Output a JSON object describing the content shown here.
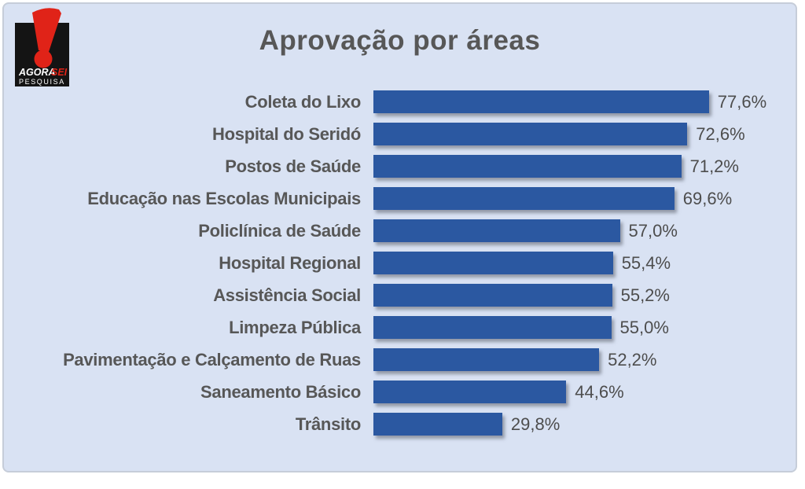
{
  "logo": {
    "brand_top": "AGORA",
    "brand_top_accent": "SEI",
    "brand_bottom": "PESQUISA",
    "colors": {
      "bg": "#141414",
      "accent": "#e02318",
      "text": "#ffffff"
    }
  },
  "header": {
    "title": "Aprovação por áreas"
  },
  "chart_data": {
    "type": "bar",
    "orientation": "horizontal",
    "title": "Aprovação por áreas",
    "categories": [
      "Coleta do Lixo",
      "Hospital do Seridó",
      "Postos de Saúde",
      "Educação nas Escolas Municipais",
      "Policlínica de Saúde",
      "Hospital Regional",
      "Assistência Social",
      "Limpeza Pública",
      "Pavimentação e Calçamento de Ruas",
      "Saneamento Básico",
      "Trânsito"
    ],
    "values": [
      77.6,
      72.6,
      71.2,
      69.6,
      57.0,
      55.4,
      55.2,
      55.0,
      52.2,
      44.6,
      29.8
    ],
    "value_labels": [
      "77,6%",
      "72,6%",
      "71,2%",
      "69,6%",
      "57,0%",
      "55,4%",
      "55,2%",
      "55,0%",
      "52,2%",
      "44,6%",
      "29,8%"
    ],
    "xlabel": "",
    "ylabel": "",
    "xlim": [
      0,
      85
    ],
    "grid": false,
    "legend": false,
    "bar_color": "#2b58a1",
    "background_color": "#d9e2f3",
    "label_color": "#575757"
  }
}
